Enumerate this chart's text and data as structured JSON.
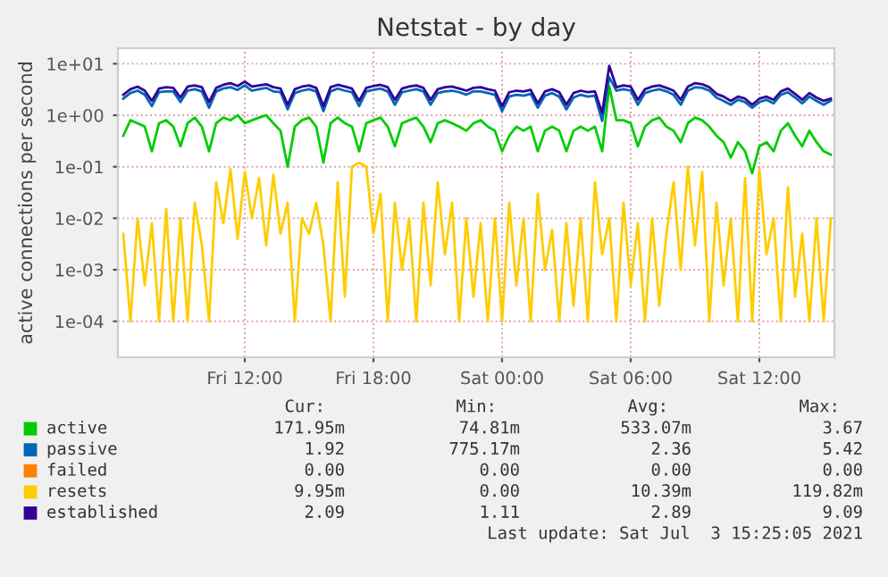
{
  "chart_data": {
    "type": "line",
    "title": "Netstat - by day",
    "ylabel": "active connections per second",
    "x": [
      "2021-07-02T06:20",
      "2021-07-02T06:40",
      "2021-07-02T07:00",
      "2021-07-02T07:20",
      "2021-07-02T07:40",
      "2021-07-02T08:00",
      "2021-07-02T08:20",
      "2021-07-02T08:40",
      "2021-07-02T09:00",
      "2021-07-02T09:20",
      "2021-07-02T09:40",
      "2021-07-02T10:00",
      "2021-07-02T10:20",
      "2021-07-02T10:40",
      "2021-07-02T11:00",
      "2021-07-02T11:20",
      "2021-07-02T11:40",
      "2021-07-02T12:00",
      "2021-07-02T12:20",
      "2021-07-02T12:40",
      "2021-07-02T13:00",
      "2021-07-02T13:20",
      "2021-07-02T13:40",
      "2021-07-02T14:00",
      "2021-07-02T14:20",
      "2021-07-02T14:40",
      "2021-07-02T15:00",
      "2021-07-02T15:20",
      "2021-07-02T15:40",
      "2021-07-02T16:00",
      "2021-07-02T16:20",
      "2021-07-02T16:40",
      "2021-07-02T17:00",
      "2021-07-02T17:20",
      "2021-07-02T17:40",
      "2021-07-02T18:00",
      "2021-07-02T18:20",
      "2021-07-02T18:40",
      "2021-07-02T19:00",
      "2021-07-02T19:20",
      "2021-07-02T19:40",
      "2021-07-02T20:00",
      "2021-07-02T20:20",
      "2021-07-02T20:40",
      "2021-07-02T21:00",
      "2021-07-02T21:20",
      "2021-07-02T21:40",
      "2021-07-02T22:00",
      "2021-07-02T22:20",
      "2021-07-02T22:40",
      "2021-07-02T23:00",
      "2021-07-02T23:20",
      "2021-07-02T23:40",
      "2021-07-03T00:00",
      "2021-07-03T00:20",
      "2021-07-03T00:40",
      "2021-07-03T01:00",
      "2021-07-03T01:20",
      "2021-07-03T01:40",
      "2021-07-03T02:00",
      "2021-07-03T02:20",
      "2021-07-03T02:40",
      "2021-07-03T03:00",
      "2021-07-03T03:20",
      "2021-07-03T03:40",
      "2021-07-03T04:00",
      "2021-07-03T04:20",
      "2021-07-03T04:40",
      "2021-07-03T05:00",
      "2021-07-03T05:20",
      "2021-07-03T05:40",
      "2021-07-03T06:00",
      "2021-07-03T06:20",
      "2021-07-03T06:40",
      "2021-07-03T07:00",
      "2021-07-03T07:20",
      "2021-07-03T07:40",
      "2021-07-03T08:00",
      "2021-07-03T08:20",
      "2021-07-03T08:40",
      "2021-07-03T09:00",
      "2021-07-03T09:20",
      "2021-07-03T09:40",
      "2021-07-03T10:00",
      "2021-07-03T10:20",
      "2021-07-03T10:40",
      "2021-07-03T11:00",
      "2021-07-03T11:20",
      "2021-07-03T11:40",
      "2021-07-03T12:00",
      "2021-07-03T12:20",
      "2021-07-03T12:40",
      "2021-07-03T13:00",
      "2021-07-03T13:20",
      "2021-07-03T13:40",
      "2021-07-03T14:00",
      "2021-07-03T14:20",
      "2021-07-03T14:40",
      "2021-07-03T15:00",
      "2021-07-03T15:20"
    ],
    "series": [
      {
        "name": "active",
        "color": "#00cc00",
        "values": [
          0.4,
          0.8,
          0.7,
          0.6,
          0.2,
          0.7,
          0.8,
          0.6,
          0.25,
          0.7,
          0.9,
          0.6,
          0.2,
          0.7,
          0.9,
          0.8,
          1.0,
          0.7,
          0.8,
          0.9,
          1.0,
          0.7,
          0.5,
          0.1,
          0.6,
          0.8,
          0.9,
          0.6,
          0.12,
          0.7,
          0.9,
          0.7,
          0.6,
          0.2,
          0.7,
          0.8,
          0.9,
          0.6,
          0.25,
          0.7,
          0.8,
          0.9,
          0.6,
          0.3,
          0.7,
          0.8,
          0.7,
          0.6,
          0.5,
          0.7,
          0.8,
          0.6,
          0.5,
          0.2,
          0.4,
          0.6,
          0.5,
          0.6,
          0.2,
          0.5,
          0.6,
          0.5,
          0.2,
          0.5,
          0.6,
          0.5,
          0.6,
          0.2,
          3.67,
          0.8,
          0.8,
          0.7,
          0.25,
          0.6,
          0.8,
          0.9,
          0.6,
          0.5,
          0.3,
          0.7,
          0.9,
          0.8,
          0.6,
          0.4,
          0.3,
          0.15,
          0.3,
          0.2,
          0.0748,
          0.25,
          0.3,
          0.2,
          0.5,
          0.7,
          0.4,
          0.25,
          0.5,
          0.3,
          0.2,
          0.172
        ]
      },
      {
        "name": "passive",
        "color": "#0066b3",
        "values": [
          2.1,
          2.7,
          3.0,
          2.5,
          1.5,
          2.8,
          2.9,
          2.9,
          1.8,
          3.0,
          3.2,
          2.9,
          1.4,
          2.9,
          3.3,
          3.5,
          3.1,
          3.8,
          3.0,
          3.2,
          3.4,
          2.9,
          2.8,
          1.3,
          2.7,
          3.0,
          3.2,
          2.9,
          1.2,
          2.9,
          3.3,
          3.0,
          2.8,
          1.5,
          2.9,
          3.1,
          3.3,
          2.9,
          1.6,
          2.8,
          3.0,
          3.2,
          2.9,
          1.6,
          2.7,
          2.9,
          3.0,
          2.8,
          2.5,
          2.9,
          2.9,
          2.7,
          2.5,
          1.2,
          2.3,
          2.5,
          2.4,
          2.6,
          1.4,
          2.4,
          2.7,
          2.3,
          1.3,
          2.2,
          2.5,
          2.3,
          2.4,
          0.775,
          5.42,
          3.0,
          3.2,
          3.0,
          1.6,
          2.7,
          3.0,
          3.2,
          2.9,
          2.5,
          1.6,
          3.0,
          3.5,
          3.4,
          3.0,
          2.2,
          1.9,
          1.6,
          2.0,
          1.8,
          1.4,
          1.8,
          2.0,
          1.7,
          2.5,
          2.8,
          2.2,
          1.7,
          2.3,
          1.9,
          1.6,
          1.92
        ]
      },
      {
        "name": "failed",
        "color": "#ff8000",
        "values": [
          null,
          null,
          null,
          null,
          null,
          null,
          null,
          null,
          null,
          null,
          null,
          null,
          null,
          null,
          null,
          null,
          null,
          null,
          null,
          null,
          null,
          null,
          null,
          null,
          null,
          null,
          null,
          null,
          null,
          null,
          null,
          null,
          null,
          null,
          null,
          null,
          null,
          null,
          null,
          null,
          null,
          null,
          null,
          null,
          null,
          null,
          null,
          null,
          null,
          null,
          null,
          null,
          null,
          null,
          null,
          null,
          null,
          null,
          null,
          null,
          null,
          null,
          null,
          null,
          null,
          null,
          null,
          null,
          null,
          null,
          null,
          null,
          null,
          null,
          null,
          null,
          null,
          null,
          null,
          null,
          null,
          null,
          null,
          null,
          null,
          null,
          null,
          null,
          null,
          null,
          null,
          null,
          null,
          null,
          null,
          null,
          null,
          null,
          null,
          null
        ]
      },
      {
        "name": "resets",
        "color": "#ffcc00",
        "values": [
          0.005,
          0.0001,
          0.01,
          0.0005,
          0.008,
          0.0001,
          0.015,
          0.0001,
          0.01,
          0.0001,
          0.02,
          0.003,
          0.0001,
          0.05,
          0.008,
          0.09,
          0.004,
          0.08,
          0.01,
          0.06,
          0.003,
          0.07,
          0.005,
          0.02,
          0.0001,
          0.01,
          0.005,
          0.02,
          0.003,
          0.0001,
          0.05,
          0.0003,
          0.1,
          0.11982,
          0.1,
          0.005,
          0.03,
          0.0001,
          0.02,
          0.001,
          0.01,
          0.0001,
          0.02,
          0.0005,
          0.05,
          0.002,
          0.02,
          0.0001,
          0.01,
          0.0003,
          0.008,
          0.0001,
          0.01,
          0.0001,
          0.02,
          0.0005,
          0.01,
          0.0001,
          0.03,
          0.001,
          0.006,
          0.0001,
          0.008,
          0.0002,
          0.01,
          0.0001,
          0.05,
          0.002,
          0.01,
          0.0001,
          0.02,
          0.0005,
          0.008,
          0.0001,
          0.01,
          0.0002,
          0.005,
          0.05,
          0.001,
          0.1,
          0.003,
          0.08,
          0.0001,
          0.02,
          0.0005,
          0.01,
          0.0001,
          0.06,
          0.0001,
          0.09,
          0.002,
          0.01,
          0.0001,
          0.04,
          0.0003,
          0.005,
          0.0001,
          0.01,
          0.0001,
          0.00995
        ]
      },
      {
        "name": "established",
        "color": "#330099",
        "values": [
          2.5,
          3.2,
          3.6,
          3.0,
          1.9,
          3.3,
          3.5,
          3.4,
          2.2,
          3.6,
          3.8,
          3.5,
          1.8,
          3.4,
          3.9,
          4.2,
          3.7,
          4.5,
          3.6,
          3.8,
          4.0,
          3.5,
          3.3,
          1.6,
          3.2,
          3.6,
          3.8,
          3.4,
          1.5,
          3.5,
          3.9,
          3.6,
          3.3,
          1.9,
          3.4,
          3.7,
          3.9,
          3.5,
          2.0,
          3.3,
          3.6,
          3.8,
          3.4,
          2.0,
          3.2,
          3.5,
          3.6,
          3.3,
          3.0,
          3.4,
          3.5,
          3.2,
          3.0,
          1.5,
          2.8,
          3.0,
          2.9,
          3.1,
          1.7,
          2.9,
          3.2,
          2.8,
          1.6,
          2.7,
          3.0,
          2.8,
          2.9,
          1.11,
          9.09,
          3.5,
          3.8,
          3.6,
          2.0,
          3.2,
          3.6,
          3.8,
          3.4,
          3.0,
          2.0,
          3.6,
          4.2,
          4.0,
          3.5,
          2.6,
          2.3,
          1.9,
          2.3,
          2.1,
          1.6,
          2.1,
          2.3,
          2.0,
          2.9,
          3.3,
          2.6,
          2.0,
          2.7,
          2.2,
          1.9,
          2.09
        ]
      }
    ],
    "log": true,
    "ylim": [
      2e-05,
      20
    ],
    "yticks": [
      {
        "value": 0.0001,
        "label": "1e-04"
      },
      {
        "value": 0.001,
        "label": "1e-03"
      },
      {
        "value": 0.01,
        "label": "1e-02"
      },
      {
        "value": 0.1,
        "label": "1e-01"
      },
      {
        "value": 1,
        "label": "1e+00"
      },
      {
        "value": 10,
        "label": "1e+01"
      }
    ],
    "xlim": [
      "2021-07-02T06:05",
      "2021-07-03T15:30"
    ],
    "xticks": [
      {
        "value": "2021-07-02T12:00",
        "label": "Fri 12:00"
      },
      {
        "value": "2021-07-02T18:00",
        "label": "Fri 18:00"
      },
      {
        "value": "2021-07-03T00:00",
        "label": "Sat 00:00"
      },
      {
        "value": "2021-07-03T06:00",
        "label": "Sat 06:00"
      },
      {
        "value": "2021-07-03T12:00",
        "label": "Sat 12:00"
      }
    ],
    "grid": true,
    "legend": "bottom",
    "annotations": [
      "Cur:",
      "Min:",
      "Avg:",
      "Max:",
      "171.95m",
      "74.81m",
      "533.07m",
      "3.67",
      "1.92",
      "775.17m",
      "2.36",
      "5.42",
      "0.00",
      "0.00",
      "0.00",
      "0.00",
      "9.95m",
      "0.00",
      "10.39m",
      "119.82m",
      "2.09",
      "1.11",
      "2.89",
      "9.09",
      "Last update: Sat Jul  3 15:25:05 2021"
    ]
  }
}
